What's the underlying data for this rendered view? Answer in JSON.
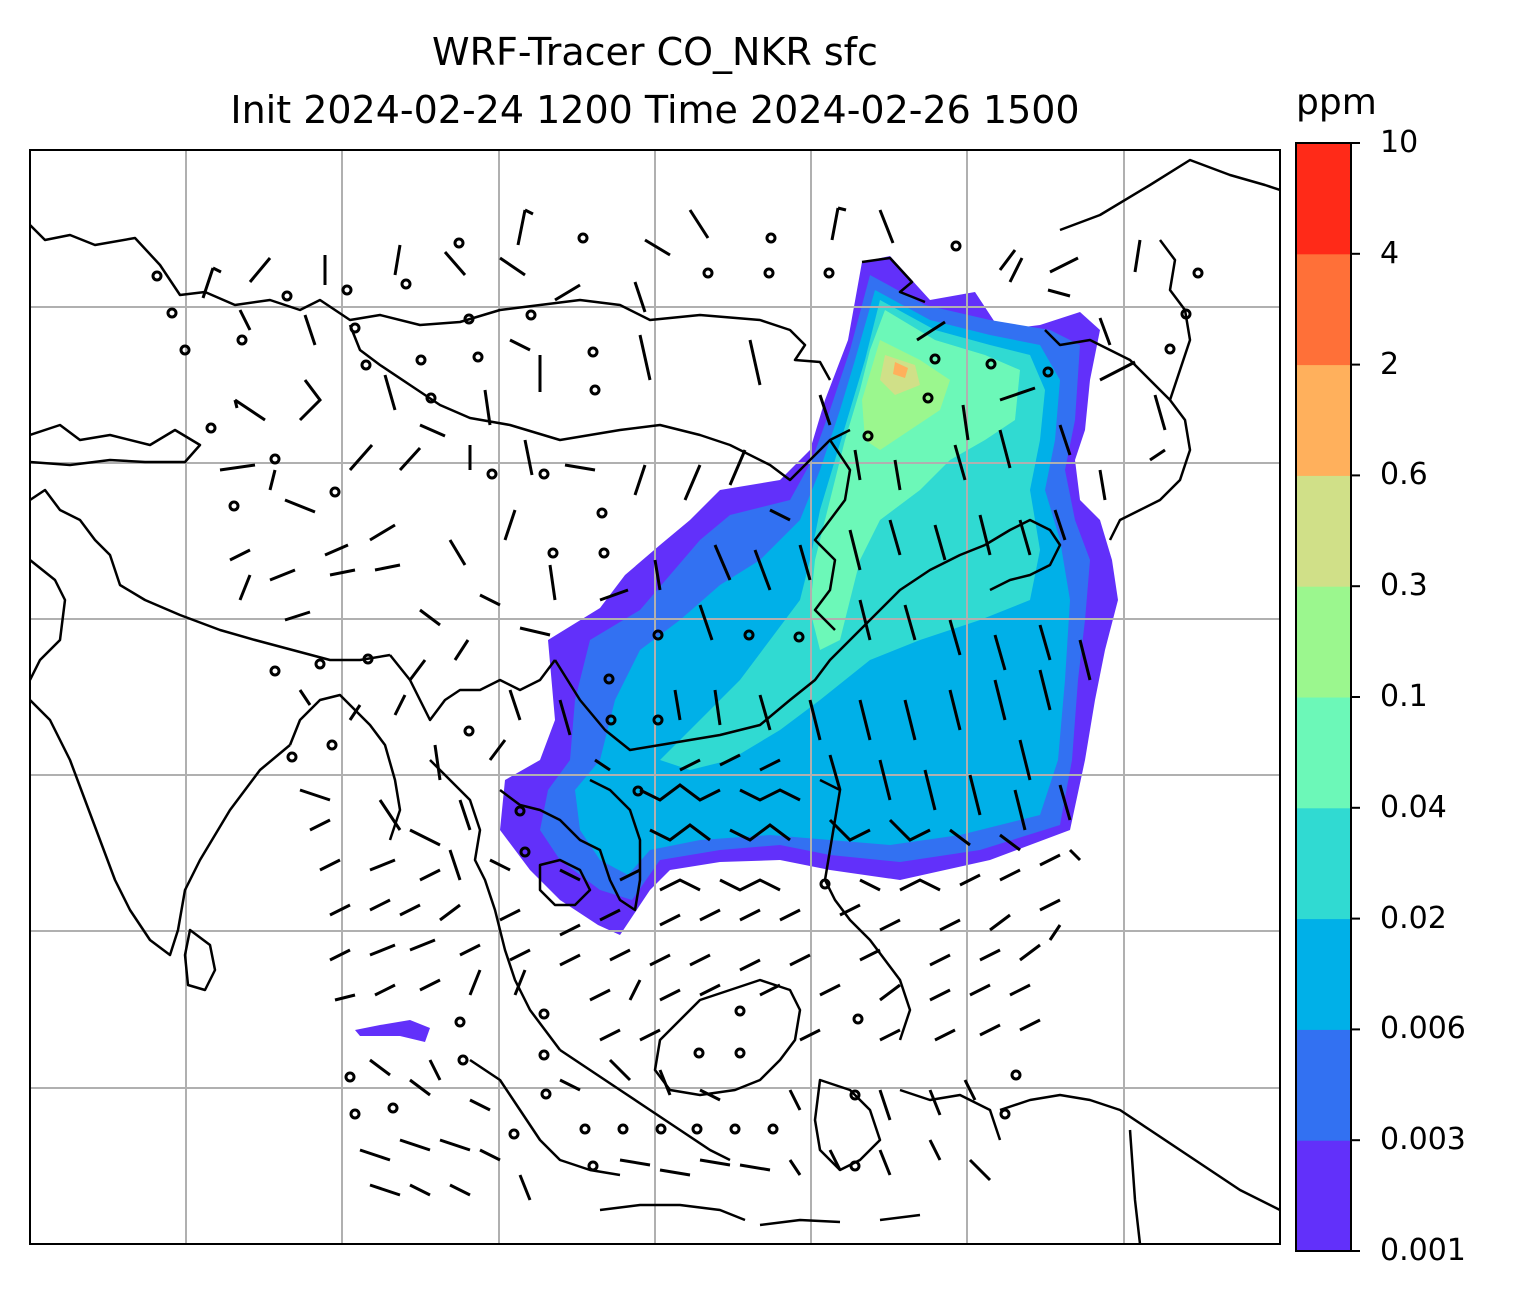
{
  "title": {
    "line1": "WRF-Tracer CO_NKR sfc",
    "line2": "Init 2024-02-24 1200 Time 2024-02-26 1500"
  },
  "colorbar": {
    "unit": "ppm",
    "ticks": [
      "0.001",
      "0.003",
      "0.006",
      "0.02",
      "0.04",
      "0.1",
      "0.3",
      "0.6",
      "2",
      "4",
      "10"
    ],
    "colors": [
      "#6230fa",
      "#3271f2",
      "#00b0e8",
      "#30dad2",
      "#6cf8b8",
      "#9bf78e",
      "#d0e088",
      "#ffb05c",
      "#ff7038",
      "#ff2a18"
    ]
  },
  "map": {
    "background": "#ffffff",
    "coastline_color": "#000000",
    "gridline_color": "#b0b0b0",
    "barb_color": "#000000"
  }
}
